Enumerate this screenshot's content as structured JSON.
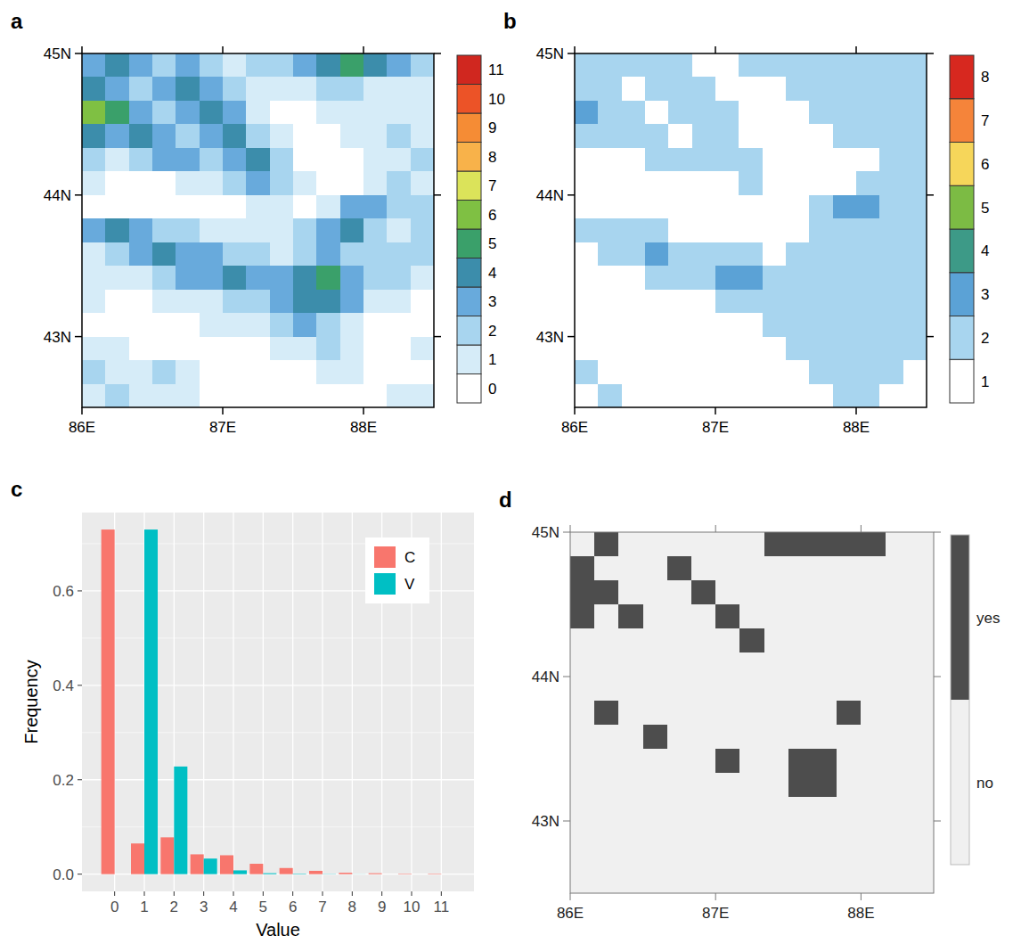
{
  "chart_data": [
    {
      "type": "heatmap",
      "title": "a",
      "xlim": [
        86,
        88.5
      ],
      "ylim": [
        42.5,
        45
      ],
      "xticks": [
        {
          "value": 86,
          "label": "86E"
        },
        {
          "value": 87,
          "label": "87E"
        },
        {
          "value": 88,
          "label": "88E"
        }
      ],
      "yticks": [
        {
          "value": 43,
          "label": "43N"
        },
        {
          "value": 44,
          "label": "44N"
        },
        {
          "value": 45,
          "label": "45N"
        }
      ],
      "color_ticks": [
        0,
        1,
        2,
        3,
        4,
        5,
        6,
        7,
        8,
        9,
        10,
        11
      ],
      "colors": [
        "#ffffff",
        "#d6ecf8",
        "#a8d5ef",
        "#68aadc",
        "#3c8dab",
        "#3aa06a",
        "#7fc043",
        "#dbe35a",
        "#f8b24a",
        "#f58c35",
        "#ec5327",
        "#d0271f"
      ],
      "cells": [
        [
          3,
          4,
          3,
          2,
          3,
          2,
          1,
          2,
          2,
          3,
          4,
          5,
          4,
          3,
          2
        ],
        [
          4,
          3,
          2,
          3,
          4,
          3,
          2,
          1,
          1,
          1,
          2,
          2,
          1,
          1,
          1
        ],
        [
          6,
          5,
          3,
          2,
          3,
          4,
          3,
          1,
          0,
          0,
          1,
          1,
          1,
          1,
          1
        ],
        [
          4,
          3,
          4,
          3,
          2,
          3,
          4,
          2,
          1,
          0,
          0,
          1,
          1,
          2,
          1
        ],
        [
          2,
          1,
          2,
          3,
          3,
          2,
          3,
          4,
          2,
          0,
          0,
          0,
          1,
          1,
          2
        ],
        [
          1,
          0,
          0,
          0,
          1,
          1,
          2,
          3,
          2,
          1,
          0,
          0,
          1,
          2,
          1
        ],
        [
          0,
          0,
          0,
          0,
          0,
          0,
          0,
          1,
          1,
          0,
          1,
          3,
          3,
          2,
          2
        ],
        [
          3,
          4,
          3,
          2,
          2,
          1,
          1,
          1,
          1,
          2,
          3,
          4,
          2,
          1,
          2
        ],
        [
          1,
          2,
          3,
          4,
          3,
          3,
          2,
          2,
          1,
          2,
          3,
          2,
          2,
          2,
          2
        ],
        [
          1,
          1,
          1,
          2,
          3,
          3,
          4,
          3,
          3,
          4,
          5,
          3,
          2,
          2,
          1
        ],
        [
          1,
          0,
          0,
          1,
          1,
          1,
          2,
          2,
          3,
          4,
          4,
          3,
          1,
          1,
          0
        ],
        [
          0,
          0,
          0,
          0,
          0,
          1,
          1,
          1,
          2,
          3,
          2,
          1,
          0,
          0,
          0
        ],
        [
          1,
          1,
          0,
          0,
          0,
          0,
          0,
          0,
          1,
          1,
          2,
          1,
          0,
          0,
          1
        ],
        [
          2,
          1,
          1,
          2,
          1,
          0,
          0,
          0,
          0,
          0,
          1,
          1,
          0,
          0,
          0
        ],
        [
          1,
          2,
          1,
          1,
          1,
          0,
          0,
          0,
          0,
          0,
          0,
          0,
          0,
          1,
          1
        ]
      ]
    },
    {
      "type": "heatmap",
      "title": "b",
      "xlim": [
        86,
        88.5
      ],
      "ylim": [
        42.5,
        45
      ],
      "xticks": [
        {
          "value": 86,
          "label": "86E"
        },
        {
          "value": 87,
          "label": "87E"
        },
        {
          "value": 88,
          "label": "88E"
        }
      ],
      "yticks": [
        {
          "value": 43,
          "label": "43N"
        },
        {
          "value": 44,
          "label": "44N"
        },
        {
          "value": 45,
          "label": "45N"
        }
      ],
      "color_ticks": [
        1,
        2,
        3,
        4,
        5,
        6,
        7,
        8
      ],
      "colors": [
        "#ffffff",
        "#a8d5ef",
        "#5ba2d6",
        "#3d9a87",
        "#7cbb44",
        "#f6d65a",
        "#f5843a",
        "#d7281f"
      ],
      "cells": [
        [
          2,
          2,
          2,
          2,
          2,
          1,
          1,
          2,
          2,
          2,
          2,
          2,
          2,
          2,
          2
        ],
        [
          2,
          2,
          1,
          2,
          2,
          2,
          1,
          1,
          1,
          2,
          2,
          2,
          2,
          2,
          2
        ],
        [
          3,
          2,
          2,
          1,
          2,
          2,
          2,
          1,
          1,
          1,
          2,
          2,
          2,
          2,
          2
        ],
        [
          2,
          2,
          2,
          2,
          1,
          2,
          2,
          1,
          1,
          1,
          1,
          2,
          2,
          2,
          2
        ],
        [
          1,
          1,
          1,
          2,
          2,
          2,
          2,
          2,
          1,
          1,
          1,
          1,
          1,
          2,
          2
        ],
        [
          1,
          1,
          1,
          1,
          1,
          1,
          1,
          2,
          1,
          1,
          1,
          1,
          2,
          2,
          2
        ],
        [
          1,
          1,
          1,
          1,
          1,
          1,
          1,
          1,
          1,
          1,
          2,
          3,
          3,
          2,
          2
        ],
        [
          2,
          2,
          2,
          2,
          1,
          1,
          1,
          1,
          1,
          1,
          2,
          2,
          2,
          2,
          2
        ],
        [
          1,
          2,
          2,
          3,
          2,
          2,
          2,
          2,
          1,
          2,
          2,
          2,
          2,
          2,
          2
        ],
        [
          1,
          1,
          1,
          2,
          2,
          2,
          3,
          3,
          2,
          2,
          2,
          2,
          2,
          2,
          2
        ],
        [
          1,
          1,
          1,
          1,
          1,
          1,
          2,
          2,
          2,
          2,
          2,
          2,
          2,
          2,
          2
        ],
        [
          1,
          1,
          1,
          1,
          1,
          1,
          1,
          1,
          2,
          2,
          2,
          2,
          2,
          2,
          2
        ],
        [
          1,
          1,
          1,
          1,
          1,
          1,
          1,
          1,
          1,
          2,
          2,
          2,
          2,
          2,
          2
        ],
        [
          2,
          1,
          1,
          1,
          1,
          1,
          1,
          1,
          1,
          1,
          2,
          2,
          2,
          2,
          1
        ],
        [
          1,
          2,
          1,
          1,
          1,
          1,
          1,
          1,
          1,
          1,
          1,
          2,
          2,
          1,
          1
        ]
      ]
    },
    {
      "type": "bar",
      "title": "c",
      "x_label": "Value",
      "y_label": "Frequency",
      "categories": [
        "0",
        "1",
        "2",
        "3",
        "4",
        "5",
        "6",
        "7",
        "8",
        "9",
        "10",
        "11"
      ],
      "series": [
        {
          "name": "C",
          "color": "#F8766D",
          "values": [
            0.73,
            0.065,
            0.078,
            0.042,
            0.04,
            0.022,
            0.013,
            0.007,
            0.003,
            0.002,
            0.001,
            0.001
          ]
        },
        {
          "name": "V",
          "color": "#00BFC4",
          "values": [
            0,
            0.73,
            0.228,
            0.033,
            0.008,
            0.002,
            0.001,
            0.0005,
            0.0002,
            0,
            0,
            0
          ]
        }
      ],
      "ylim": [
        -0.0365,
        0.766
      ],
      "yticks": [
        {
          "value": 0,
          "label": "0.0"
        },
        {
          "value": 0.2,
          "label": "0.2"
        },
        {
          "value": 0.4,
          "label": "0.4"
        },
        {
          "value": 0.6,
          "label": "0.6"
        }
      ],
      "grid": true,
      "legend": "top-right"
    },
    {
      "type": "heatmap",
      "title": "d",
      "xlim": [
        86,
        88.5
      ],
      "ylim": [
        42.5,
        45
      ],
      "xticks": [
        {
          "value": 86,
          "label": "86E"
        },
        {
          "value": 87,
          "label": "87E"
        },
        {
          "value": 88,
          "label": "88E"
        }
      ],
      "yticks": [
        {
          "value": 43,
          "label": "43N"
        },
        {
          "value": 44,
          "label": "44N"
        },
        {
          "value": 45,
          "label": "45N"
        }
      ],
      "color_ticks": [
        {
          "value": 0,
          "label": "no"
        },
        {
          "value": 1,
          "label": "yes"
        }
      ],
      "colors": [
        "#f0f0f0",
        "#4d4d4d"
      ],
      "cells": [
        [
          0,
          1,
          0,
          0,
          0,
          0,
          0,
          0,
          1,
          1,
          1,
          1,
          1,
          0,
          0
        ],
        [
          1,
          0,
          0,
          0,
          1,
          0,
          0,
          0,
          0,
          0,
          0,
          0,
          0,
          0,
          0
        ],
        [
          1,
          1,
          0,
          0,
          0,
          1,
          0,
          0,
          0,
          0,
          0,
          0,
          0,
          0,
          0
        ],
        [
          1,
          0,
          1,
          0,
          0,
          0,
          1,
          0,
          0,
          0,
          0,
          0,
          0,
          0,
          0
        ],
        [
          0,
          0,
          0,
          0,
          0,
          0,
          0,
          1,
          0,
          0,
          0,
          0,
          0,
          0,
          0
        ],
        [
          0,
          0,
          0,
          0,
          0,
          0,
          0,
          0,
          0,
          0,
          0,
          0,
          0,
          0,
          0
        ],
        [
          0,
          0,
          0,
          0,
          0,
          0,
          0,
          0,
          0,
          0,
          0,
          0,
          0,
          0,
          0
        ],
        [
          0,
          1,
          0,
          0,
          0,
          0,
          0,
          0,
          0,
          0,
          0,
          1,
          0,
          0,
          0
        ],
        [
          0,
          0,
          0,
          1,
          0,
          0,
          0,
          0,
          0,
          0,
          0,
          0,
          0,
          0,
          0
        ],
        [
          0,
          0,
          0,
          0,
          0,
          0,
          1,
          0,
          0,
          1,
          1,
          0,
          0,
          0,
          0
        ],
        [
          0,
          0,
          0,
          0,
          0,
          0,
          0,
          0,
          0,
          1,
          1,
          0,
          0,
          0,
          0
        ],
        [
          0,
          0,
          0,
          0,
          0,
          0,
          0,
          0,
          0,
          0,
          0,
          0,
          0,
          0,
          0
        ],
        [
          0,
          0,
          0,
          0,
          0,
          0,
          0,
          0,
          0,
          0,
          0,
          0,
          0,
          0,
          0
        ],
        [
          0,
          0,
          0,
          0,
          0,
          0,
          0,
          0,
          0,
          0,
          0,
          0,
          0,
          0,
          0
        ],
        [
          0,
          0,
          0,
          0,
          0,
          0,
          0,
          0,
          0,
          0,
          0,
          0,
          0,
          0,
          0
        ]
      ]
    }
  ]
}
